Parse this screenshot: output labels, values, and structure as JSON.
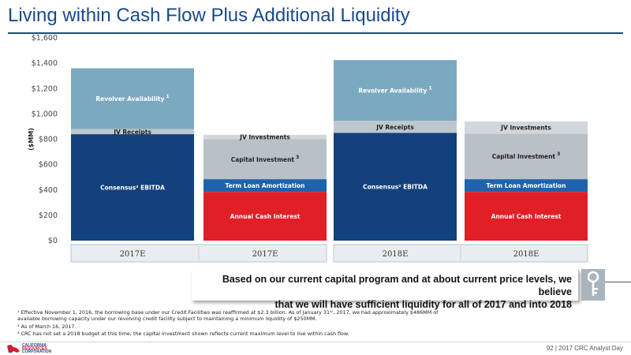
{
  "title": "Living within Cash Flow Plus Additional Liquidity",
  "chart_data": {
    "type": "bar",
    "stacked": true,
    "ylabel": "($MM)",
    "ylim": [
      0,
      1600
    ],
    "yticks": [
      "$0",
      "$200",
      "$400",
      "$600",
      "$800",
      "$1,000",
      "$1,200",
      "$1,400",
      "$1,600"
    ],
    "groups": [
      {
        "categories": [
          "2017E",
          "2017E"
        ]
      },
      {
        "categories": [
          "2018E",
          "2018E"
        ]
      }
    ],
    "bars": [
      {
        "category": "2017E",
        "segments": [
          {
            "name": "Consensus² EBITDA",
            "sup": "",
            "base": 0,
            "top": 840,
            "color": "#12417d"
          },
          {
            "name": "JV Receipts",
            "sup": "",
            "base": 840,
            "top": 880,
            "color": "#bfc7ce"
          },
          {
            "name": "Revolver Availability",
            "sup": "1",
            "base": 880,
            "top": 1360,
            "color": "#7ba9bf"
          }
        ]
      },
      {
        "category": "2017E",
        "segments": [
          {
            "name": "Annual Cash Interest",
            "sup": "",
            "base": 0,
            "top": 385,
            "color": "#e01f27"
          },
          {
            "name": "Term Loan Amortization",
            "sup": "",
            "base": 385,
            "top": 485,
            "color": "#1f63ad"
          },
          {
            "name": "Capital Investment",
            "sup": "3",
            "base": 485,
            "top": 800,
            "color": "#b9c0c6"
          },
          {
            "name": "JV Investments",
            "sup": "",
            "base": 800,
            "top": 835,
            "color": "#d2d7db"
          }
        ]
      },
      {
        "category": "2018E",
        "segments": [
          {
            "name": "Consensus² EBITDA",
            "sup": "",
            "base": 0,
            "top": 850,
            "color": "#12417d"
          },
          {
            "name": "JV Receipts",
            "sup": "",
            "base": 850,
            "top": 945,
            "color": "#bfc7ce"
          },
          {
            "name": "Revolver Availability",
            "sup": "1",
            "base": 945,
            "top": 1425,
            "color": "#7ba9bf"
          }
        ]
      },
      {
        "category": "2018E",
        "segments": [
          {
            "name": "Annual Cash Interest",
            "sup": "",
            "base": 0,
            "top": 385,
            "color": "#e01f27"
          },
          {
            "name": "Term Loan Amortization",
            "sup": "",
            "base": 385,
            "top": 485,
            "color": "#1f63ad"
          },
          {
            "name": "Capital Investment",
            "sup": "3",
            "base": 485,
            "top": 845,
            "color": "#b9c0c6"
          },
          {
            "name": "JV Investments",
            "sup": "",
            "base": 845,
            "top": 940,
            "color": "#d2d7db"
          }
        ]
      }
    ]
  },
  "callout": {
    "line1": "Based on our current capital program and at about current price levels, we believe",
    "line2": "that we will have sufficient liquidity for all of 2017 and into 2018"
  },
  "footnotes": {
    "note1": "¹ Effective November 1, 2016, the borrowing base under our Credit Facilities was reaffirmed at $2.3 billion. As of January 31ˢᵗ, 2017,  we had approximately $486MM of available borrowing capacity under our revolving credit facility subject to maintaining a minimum liquidity of $250MM.",
    "note2": "² As of March 16, 2017.",
    "note3": "³ CRC has not set a 2018 budget at this time; the capital investment shown reflects current maximum level to live within cash flow."
  },
  "logo": {
    "line1": "CALIFORNIA",
    "line2": "RESOURCES",
    "line3": "CORPORATION"
  },
  "footer": "92 | 2017 CRC Analyst Day",
  "colors": {
    "brand_blue": "#1a4a8a",
    "red": "#e01f27"
  }
}
